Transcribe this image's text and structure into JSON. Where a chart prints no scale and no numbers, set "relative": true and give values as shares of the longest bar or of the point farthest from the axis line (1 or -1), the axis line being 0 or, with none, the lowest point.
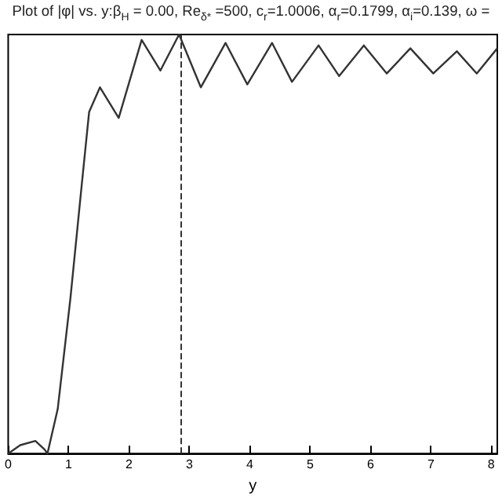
{
  "chart_data": {
    "type": "line",
    "title": "Plot of |φ| vs. y:β$_{H}$ = 0.00, Re$_{δ*}$ =500, c$_{r}$=1.0006, α$_{r}$=0.1799, α$_{i}$=0.139, ω =",
    "xlabel": "y",
    "relative": true,
    "x": [
      0,
      0.2,
      0.45,
      0.6,
      0.65,
      0.82,
      1.03,
      1.21,
      1.34,
      1.52,
      1.83,
      2.21,
      2.52,
      2.83,
      3.19,
      3.6,
      3.96,
      4.37,
      4.7,
      5.14,
      5.48,
      5.89,
      6.27,
      6.66,
      7.04,
      7.43,
      7.76,
      8.1
    ],
    "series": [
      {
        "color": "#333333",
        "values": [
          0,
          0.02,
          0.03,
          0.01,
          0,
          0.106,
          0.37,
          0.63,
          0.815,
          0.874,
          0.801,
          0.987,
          0.914,
          1,
          0.874,
          0.98,
          0.881,
          0.98,
          0.887,
          0.974,
          0.901,
          0.974,
          0.907,
          0.967,
          0.907,
          0.96,
          0.907,
          0.967
        ]
      }
    ],
    "xlim": [
      0,
      8.1
    ],
    "xticks": [
      0,
      1,
      2,
      3,
      4,
      5,
      6,
      7,
      8
    ],
    "ref_lines": [
      {
        "axis": "x",
        "value": 2.85,
        "line_style": "dashed",
        "color": "#333333"
      }
    ],
    "grid": false,
    "marker": "none",
    "line_style": "solid"
  }
}
